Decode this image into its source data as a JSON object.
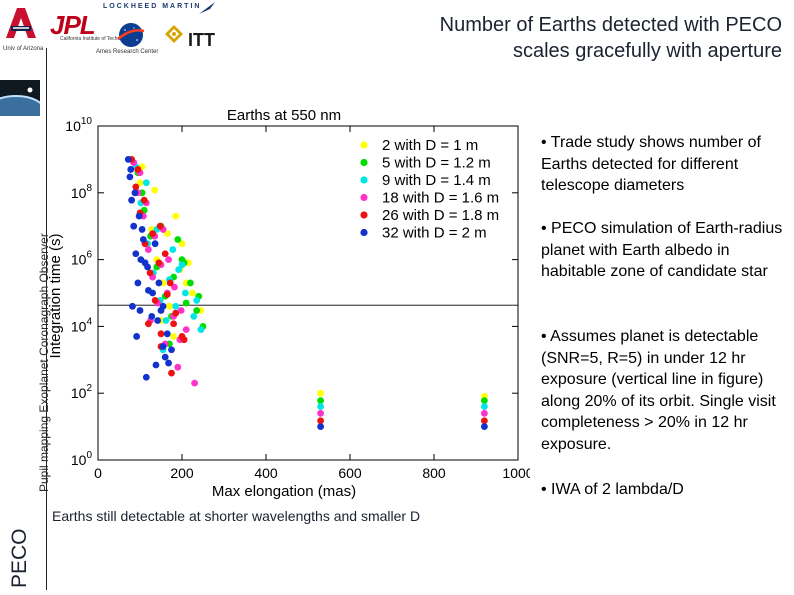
{
  "header": {
    "title_line1": "Number of Earths detected with PECO",
    "title_line2": "scales gracefully with aperture",
    "ua_caption": "Univ of Arizona",
    "jpl_label": "JPL",
    "jpl_caption": "California Institute of Technology",
    "lockheed_label": "LOCKHEED MARTIN",
    "ames_caption": "Ames Research Center",
    "itt_label": "ITT"
  },
  "sidebar": {
    "small_label": "Pupil mapping Exoplanet Coronagraph Observer",
    "big_label": "PECO"
  },
  "bullets": [
    "• Trade study shows number of Earths detected for different telescope diameters",
    "• PECO simulation of Earth-radius planet with Earth albedo in habitable zone of candidate star",
    "• Assumes planet is detectable (SNR=5, R=5) in under 12 hr exposure (vertical line in figure) along 20% of its orbit. Single visit completeness > 20% in 12 hr exposure.",
    "• IWA of 2 lambda/D"
  ],
  "caption": "Earths still detectable at shorter wavelengths and smaller D",
  "chart_data": {
    "type": "scatter",
    "title": "Earths at 550 nm",
    "xlabel": "Max elongation (mas)",
    "ylabel": "Integration time (s)",
    "xlim": [
      0,
      1000
    ],
    "ylim": [
      1,
      10000000000
    ],
    "yscale": "log",
    "x_ticks": [
      "0",
      "200",
      "400",
      "600",
      "800",
      "1000"
    ],
    "y_tick_labels": [
      {
        "base": "10",
        "exp": "0"
      },
      {
        "base": "10",
        "exp": "2"
      },
      {
        "base": "10",
        "exp": "4"
      },
      {
        "base": "10",
        "exp": "6"
      },
      {
        "base": "10",
        "exp": "8"
      },
      {
        "base": "10",
        "exp": "10"
      }
    ],
    "grid": false,
    "legend_position": "top-right",
    "threshold_line_y": 43200,
    "series": [
      {
        "name": "2 with D = 1 m",
        "color": "#ffff00",
        "x": [
          100,
          115,
          128,
          140,
          155,
          170,
          185,
          200,
          215,
          530,
          920,
          105,
          135,
          165,
          195,
          225,
          150,
          180,
          210,
          245
        ],
        "y": [
          200000000,
          50000000,
          8000000,
          1000000,
          200000,
          40000,
          20000000,
          3000000,
          800000,
          100,
          80,
          600000000,
          120000000,
          6000000,
          500000,
          100000,
          15000,
          5000,
          200000,
          30000
        ]
      },
      {
        "name": "5 with D = 1.2 m",
        "color": "#00dd00",
        "x": [
          95,
          110,
          125,
          140,
          160,
          175,
          190,
          205,
          220,
          235,
          530,
          920,
          105,
          150,
          180,
          200,
          240,
          170,
          210,
          250
        ],
        "y": [
          400000000,
          30000000,
          5000000,
          600000,
          80000,
          20000,
          4000000,
          800000,
          200000,
          30000,
          60,
          60,
          100000000,
          10000000,
          300000,
          1000000,
          80000,
          3000,
          50000,
          10000
        ]
      },
      {
        "name": "9 with D = 1.4 m",
        "color": "#00e5e5",
        "x": [
          90,
          102,
          118,
          132,
          148,
          162,
          178,
          192,
          208,
          228,
          530,
          920,
          115,
          140,
          170,
          200,
          235,
          155,
          185,
          245
        ],
        "y": [
          600000000,
          50000000,
          3000000,
          400000,
          60000,
          15000,
          2000000,
          500000,
          100000,
          20000,
          40,
          40,
          200000000,
          8000000,
          250000,
          700000,
          60000,
          2000,
          40000,
          8000
        ]
      },
      {
        "name": "18 with D = 1.6 m",
        "color": "#ff33cc",
        "x": [
          85,
          95,
          108,
          120,
          130,
          142,
          155,
          168,
          182,
          198,
          210,
          530,
          920,
          100,
          115,
          135,
          150,
          165,
          180,
          195,
          125,
          160,
          190,
          230
        ],
        "y": [
          800000000,
          100000000,
          20000000,
          2000000,
          300000,
          50000,
          8000000,
          1000000,
          150000,
          30000,
          8000,
          25,
          25,
          400000000,
          50000000,
          5000000,
          700000,
          100000,
          20000,
          4000,
          15000,
          3000,
          600,
          200
        ]
      },
      {
        "name": "26 with D = 1.8 m",
        "color": "#ee1111",
        "x": [
          80,
          90,
          100,
          112,
          124,
          136,
          148,
          160,
          172,
          185,
          200,
          530,
          920,
          95,
          110,
          130,
          145,
          165,
          180,
          120,
          150,
          175,
          205,
          150
        ],
        "y": [
          1000000000,
          150000000,
          25000000,
          3000000,
          400000,
          60000,
          10000000,
          1500000,
          200000,
          25000,
          5000,
          15,
          15,
          500000000,
          60000000,
          6000000,
          800000,
          90000,
          12000,
          12000,
          2500,
          400,
          4000,
          6000
        ]
      },
      {
        "name": "32 with D = 2 m",
        "color": "#1133cc",
        "x": [
          72,
          76,
          80,
          85,
          90,
          95,
          100,
          105,
          112,
          120,
          128,
          136,
          145,
          155,
          165,
          175,
          530,
          920,
          78,
          88,
          98,
          108,
          118,
          130,
          142,
          155,
          168,
          82,
          92,
          102,
          115,
          138,
          150,
          160
        ],
        "y": [
          1000000000,
          300000000,
          60000000,
          10000000,
          1500000,
          200000,
          30000,
          8000000,
          800000,
          120000,
          20000,
          3000000,
          200000,
          40000,
          6000,
          2000,
          10,
          10,
          500000000,
          100000000,
          20000000,
          4000000,
          600000,
          100000,
          15000,
          2500,
          800,
          40000,
          5000,
          1000000,
          300,
          700,
          30000,
          1200
        ]
      }
    ]
  }
}
